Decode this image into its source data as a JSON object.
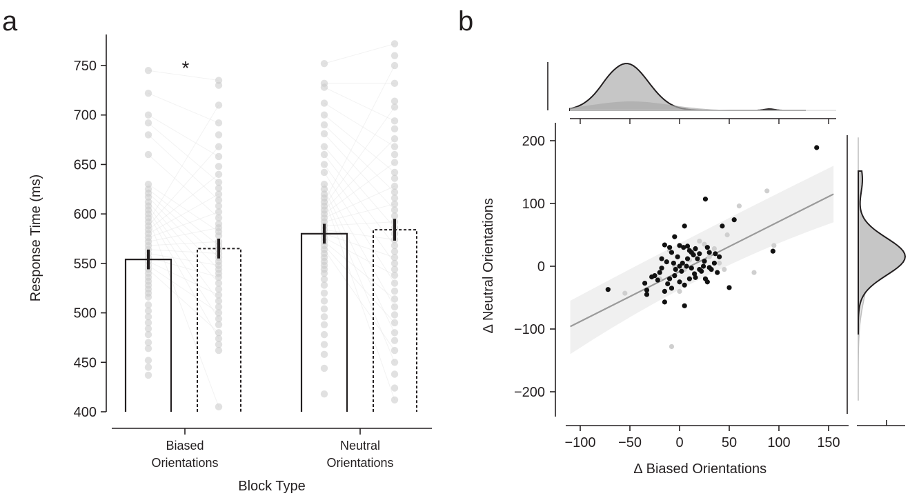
{
  "panel_a": {
    "label": "a",
    "colors": {
      "ink": "#231f20",
      "dots": "#c9c9c9",
      "lines": "#e2e2e2"
    },
    "chart_data": {
      "type": "bar",
      "categories": [
        "Biased Orientations",
        "Neutral Orientations"
      ],
      "category_lines": [
        [
          "Biased",
          "Orientations"
        ],
        [
          "Neutral",
          "Orientations"
        ]
      ],
      "xlabel": "Block Type",
      "ylabel": "Response Time (ms)",
      "ylim": [
        400,
        780
      ],
      "yticks": [
        400,
        450,
        500,
        550,
        600,
        650,
        700,
        750
      ],
      "legend": "none",
      "grid": false,
      "series": [
        {
          "style": "solid",
          "values": [
            554,
            580
          ],
          "error": [
            10,
            10
          ]
        },
        {
          "style": "dashed",
          "values": [
            565,
            584
          ],
          "error": [
            10,
            11
          ]
        }
      ],
      "points": [
        [
          745,
          722,
          700,
          692,
          680,
          660,
          630,
          625,
          621,
          617,
          612,
          608,
          604,
          600,
          596,
          592,
          588,
          584,
          580,
          576,
          572,
          568,
          564,
          560,
          556,
          552,
          548,
          544,
          540,
          536,
          532,
          528,
          524,
          520,
          516,
          508,
          502,
          496,
          490,
          484,
          478,
          470,
          464,
          452,
          445,
          437
        ],
        [
          735,
          730,
          710,
          692,
          680,
          668,
          658,
          648,
          640,
          632,
          626,
          620,
          614,
          608,
          602,
          596,
          590,
          586,
          582,
          578,
          572,
          568,
          564,
          560,
          556,
          552,
          548,
          544,
          540,
          536,
          530,
          524,
          518,
          512,
          506,
          500,
          494,
          488,
          480,
          474,
          468,
          462,
          405
        ],
        [
          752,
          732,
          728,
          712,
          700,
          690,
          681,
          668,
          660,
          650,
          642,
          630,
          625,
          620,
          616,
          612,
          608,
          604,
          600,
          596,
          592,
          588,
          584,
          580,
          576,
          572,
          568,
          564,
          560,
          556,
          552,
          548,
          544,
          540,
          534,
          528,
          520,
          512,
          504,
          496,
          488,
          478,
          468,
          458,
          444,
          418
        ],
        [
          772,
          760,
          750,
          732,
          714,
          708,
          694,
          686,
          676,
          668,
          660,
          652,
          642,
          636,
          628,
          622,
          616,
          610,
          604,
          598,
          592,
          586,
          580,
          574,
          568,
          562,
          556,
          550,
          544,
          538,
          530,
          522,
          514,
          506,
          498,
          490,
          480,
          472,
          462,
          450,
          438,
          424,
          412
        ]
      ],
      "annotations": [
        {
          "text": "*",
          "between": "Biased Orientations"
        }
      ]
    }
  },
  "panel_b": {
    "label": "b",
    "colors": {
      "ink": "#231f20",
      "grey_points": "#cfcfcf",
      "fit_line": "#9a9a9a",
      "band": "#ececec",
      "kde_fill": "#c6c6c6",
      "kde_inner": "#a9a9a9"
    },
    "chart_data": {
      "type": "scatter",
      "xlabel": "∆ Biased Orientations",
      "ylabel": "∆ Neutral Orientations",
      "xlim": [
        -115,
        160
      ],
      "ylim": [
        -245,
        235
      ],
      "xticks": [
        -100,
        -50,
        0,
        50,
        100,
        150
      ],
      "yticks": [
        -200,
        -100,
        0,
        100,
        200
      ],
      "xtick_labels": [
        "−100",
        "−50",
        "0",
        "50",
        "100",
        "150"
      ],
      "ytick_labels": [
        "−200",
        "−100",
        "0",
        "100",
        "200"
      ],
      "legend": "none",
      "grid": false,
      "regression": {
        "x": [
          -110,
          155
        ],
        "y": [
          -96,
          115
        ],
        "band_upper_y": [
          -55,
          160
        ],
        "band_lower_y": [
          -140,
          70
        ]
      },
      "black_points": [
        [
          -72,
          -37
        ],
        [
          138,
          189
        ],
        [
          26,
          107
        ],
        [
          5,
          64
        ],
        [
          43,
          64
        ],
        [
          55,
          74
        ],
        [
          94,
          24
        ],
        [
          50,
          -34
        ],
        [
          5,
          -63
        ],
        [
          -15,
          -57
        ],
        [
          -33,
          -45
        ],
        [
          -33,
          -38
        ],
        [
          -35,
          -27
        ],
        [
          -28,
          -17
        ],
        [
          -22,
          -22
        ],
        [
          -20,
          -10
        ],
        [
          -18,
          -3
        ],
        [
          -13,
          7
        ],
        [
          -15,
          34
        ],
        [
          -10,
          30
        ],
        [
          -8,
          22
        ],
        [
          -5,
          47
        ],
        [
          0,
          33
        ],
        [
          4,
          30
        ],
        [
          8,
          32
        ],
        [
          10,
          25
        ],
        [
          16,
          28
        ],
        [
          20,
          20
        ],
        [
          28,
          30
        ],
        [
          30,
          22
        ],
        [
          40,
          15
        ],
        [
          35,
          5
        ],
        [
          30,
          -2
        ],
        [
          25,
          8
        ],
        [
          20,
          -5
        ],
        [
          15,
          -12
        ],
        [
          10,
          -20
        ],
        [
          5,
          -30
        ],
        [
          0,
          -25
        ],
        [
          -5,
          -15
        ],
        [
          -8,
          -35
        ],
        [
          -12,
          -28
        ],
        [
          -15,
          -40
        ],
        [
          -4,
          -5
        ],
        [
          3,
          5
        ],
        [
          7,
          0
        ],
        [
          12,
          -3
        ],
        [
          18,
          12
        ],
        [
          22,
          -8
        ],
        [
          26,
          -20
        ],
        [
          32,
          -5
        ],
        [
          38,
          -10
        ],
        [
          -2,
          15
        ],
        [
          -10,
          -20
        ],
        [
          14,
          18
        ],
        [
          28,
          -25
        ],
        [
          2,
          -8
        ],
        [
          -25,
          -15
        ],
        [
          8,
          12
        ],
        [
          16,
          -18
        ],
        [
          -18,
          12
        ],
        [
          0,
          0
        ],
        [
          24,
          0
        ],
        [
          12,
          22
        ],
        [
          -6,
          5
        ],
        [
          36,
          20
        ]
      ],
      "grey_points": [
        [
          -55,
          -43
        ],
        [
          -8,
          -128
        ],
        [
          88,
          120
        ],
        [
          60,
          96
        ],
        [
          95,
          33
        ],
        [
          48,
          50
        ],
        [
          75,
          -10
        ],
        [
          40,
          5
        ],
        [
          20,
          40
        ],
        [
          10,
          10
        ],
        [
          -5,
          0
        ],
        [
          -20,
          -20
        ],
        [
          30,
          15
        ],
        [
          5,
          -5
        ],
        [
          15,
          25
        ],
        [
          45,
          -5
        ],
        [
          -10,
          25
        ],
        [
          0,
          -40
        ],
        [
          25,
          35
        ],
        [
          35,
          28
        ]
      ]
    }
  }
}
